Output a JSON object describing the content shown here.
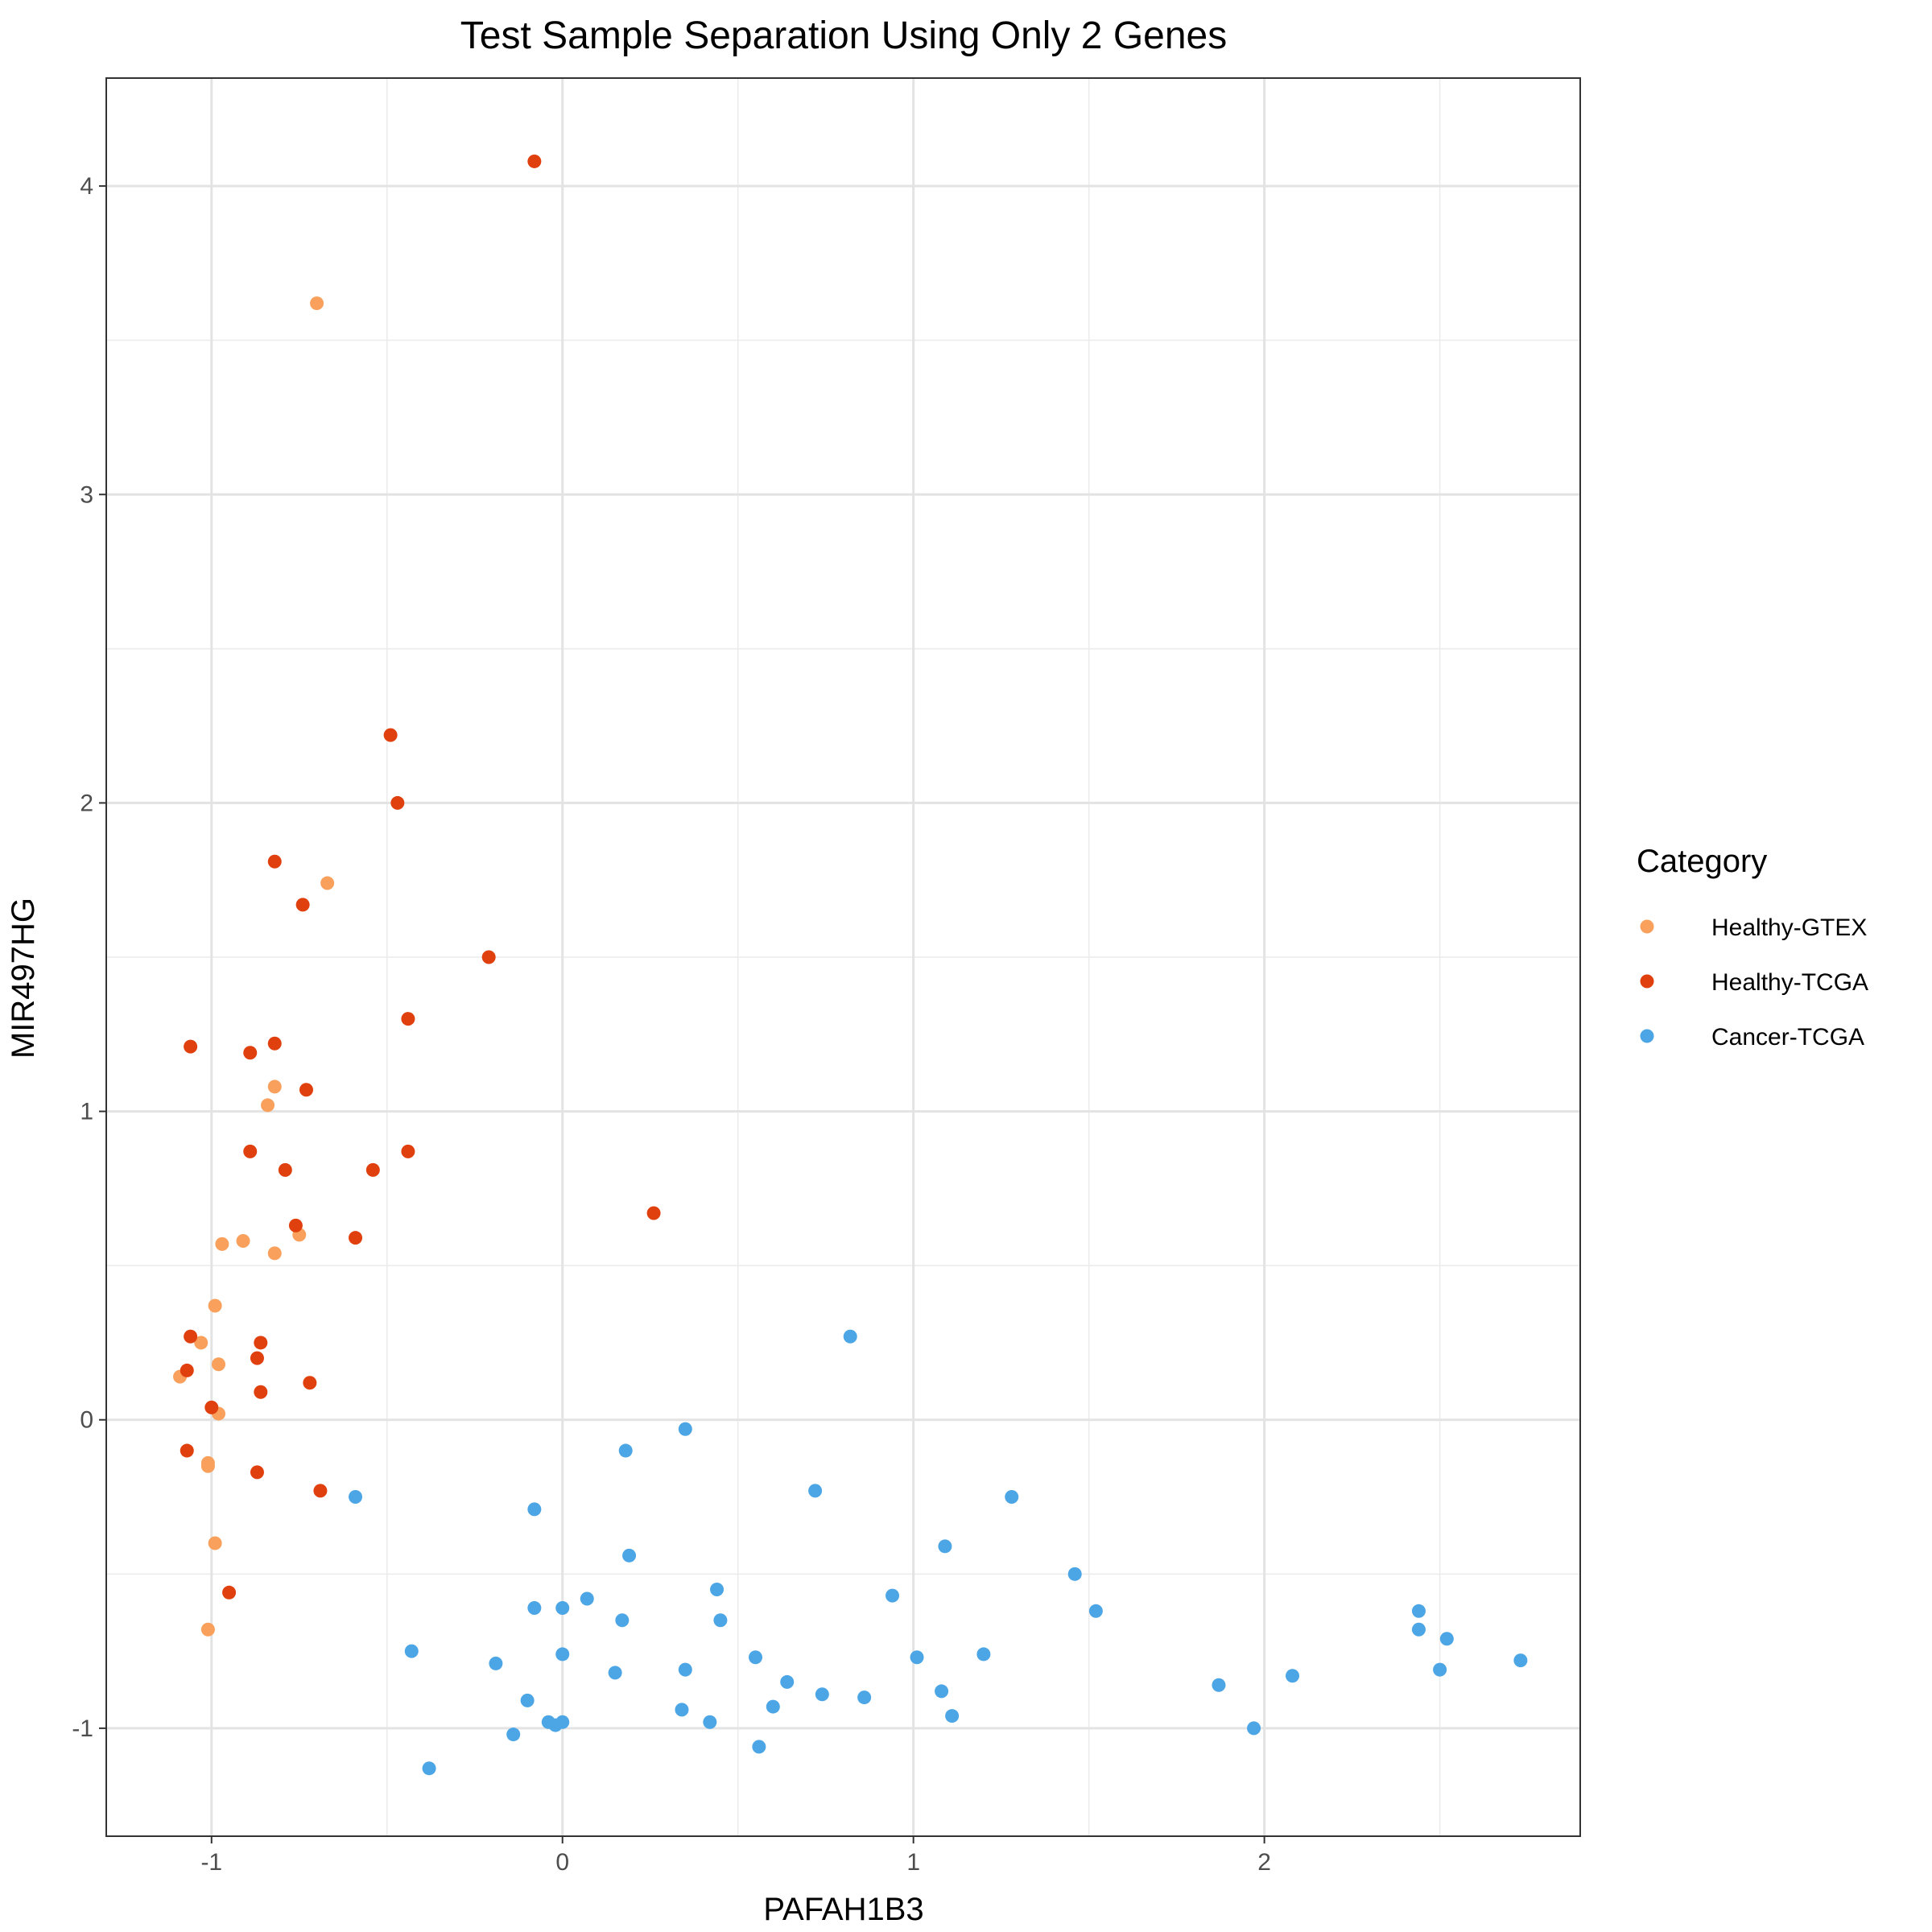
{
  "chart_data": {
    "type": "scatter",
    "title": "Test Sample Separation Using Only 2 Genes",
    "xlabel": "PAFAH1B3",
    "ylabel": "MIR497HG",
    "xlim": [
      -1.3,
      2.9
    ],
    "ylim": [
      -1.35,
      4.35
    ],
    "x_ticks": [
      -1,
      0,
      1,
      2
    ],
    "y_ticks": [
      -1,
      0,
      1,
      2,
      3,
      4
    ],
    "x_tick_labels": [
      "-1",
      "0",
      "1",
      "2"
    ],
    "y_tick_labels": [
      "-1",
      "0",
      "1",
      "2",
      "3",
      "4"
    ],
    "grid": true,
    "legend_title": "Category",
    "legend_position": "right",
    "series": [
      {
        "name": "Healthy-GTEX",
        "color": "#F8A05C",
        "points": [
          [
            -0.7,
            3.62
          ],
          [
            -0.67,
            1.74
          ],
          [
            -0.82,
            1.08
          ],
          [
            -0.84,
            1.02
          ],
          [
            -0.97,
            0.57
          ],
          [
            -0.91,
            0.58
          ],
          [
            -0.82,
            0.54
          ],
          [
            -0.75,
            0.6
          ],
          [
            -0.99,
            0.37
          ],
          [
            -1.03,
            0.25
          ],
          [
            -1.09,
            0.14
          ],
          [
            -0.98,
            0.18
          ],
          [
            -0.98,
            0.02
          ],
          [
            -1.01,
            -0.14
          ],
          [
            -1.01,
            -0.15
          ],
          [
            -0.99,
            -0.4
          ],
          [
            -1.01,
            -0.68
          ]
        ]
      },
      {
        "name": "Healthy-TCGA",
        "color": "#E0400E",
        "points": [
          [
            -0.08,
            4.08
          ],
          [
            -0.49,
            2.22
          ],
          [
            -0.47,
            2.0
          ],
          [
            -0.82,
            1.81
          ],
          [
            -0.74,
            1.67
          ],
          [
            -0.21,
            1.5
          ],
          [
            -0.44,
            1.3
          ],
          [
            -1.06,
            1.21
          ],
          [
            -0.89,
            1.19
          ],
          [
            -0.82,
            1.22
          ],
          [
            -0.73,
            1.07
          ],
          [
            -0.89,
            0.87
          ],
          [
            -0.79,
            0.81
          ],
          [
            -0.54,
            0.81
          ],
          [
            -0.44,
            0.87
          ],
          [
            -0.76,
            0.63
          ],
          [
            -0.59,
            0.59
          ],
          [
            0.26,
            0.67
          ],
          [
            -1.06,
            0.27
          ],
          [
            -0.86,
            0.25
          ],
          [
            -0.87,
            0.2
          ],
          [
            -1.07,
            0.16
          ],
          [
            -0.72,
            0.12
          ],
          [
            -0.86,
            0.09
          ],
          [
            -1.0,
            0.04
          ],
          [
            -1.07,
            -0.1
          ],
          [
            -0.87,
            -0.17
          ],
          [
            -0.69,
            -0.23
          ],
          [
            -0.95,
            -0.56
          ]
        ]
      },
      {
        "name": "Cancer-TCGA",
        "color": "#4CA5E5",
        "points": [
          [
            0.82,
            0.27
          ],
          [
            0.35,
            -0.03
          ],
          [
            0.18,
            -0.1
          ],
          [
            -0.59,
            -0.25
          ],
          [
            0.72,
            -0.23
          ],
          [
            1.28,
            -0.25
          ],
          [
            -0.08,
            -0.29
          ],
          [
            1.09,
            -0.41
          ],
          [
            0.19,
            -0.44
          ],
          [
            1.46,
            -0.5
          ],
          [
            0.44,
            -0.55
          ],
          [
            0.94,
            -0.57
          ],
          [
            0.07,
            -0.58
          ],
          [
            -0.08,
            -0.61
          ],
          [
            0.0,
            -0.61
          ],
          [
            1.52,
            -0.62
          ],
          [
            0.17,
            -0.65
          ],
          [
            0.45,
            -0.65
          ],
          [
            2.44,
            -0.62
          ],
          [
            2.44,
            -0.68
          ],
          [
            2.52,
            -0.71
          ],
          [
            -0.43,
            -0.75
          ],
          [
            0.0,
            -0.76
          ],
          [
            0.55,
            -0.77
          ],
          [
            1.01,
            -0.77
          ],
          [
            1.2,
            -0.76
          ],
          [
            2.73,
            -0.78
          ],
          [
            -0.19,
            -0.79
          ],
          [
            0.15,
            -0.82
          ],
          [
            0.35,
            -0.81
          ],
          [
            2.5,
            -0.81
          ],
          [
            2.08,
            -0.83
          ],
          [
            0.64,
            -0.85
          ],
          [
            0.74,
            -0.89
          ],
          [
            0.86,
            -0.9
          ],
          [
            1.08,
            -0.88
          ],
          [
            1.87,
            -0.86
          ],
          [
            -0.1,
            -0.91
          ],
          [
            0.34,
            -0.94
          ],
          [
            0.6,
            -0.93
          ],
          [
            1.11,
            -0.96
          ],
          [
            -0.04,
            -0.98
          ],
          [
            -0.02,
            -0.99
          ],
          [
            0.0,
            -0.98
          ],
          [
            0.42,
            -0.98
          ],
          [
            1.97,
            -1.0
          ],
          [
            -0.14,
            -1.02
          ],
          [
            0.56,
            -1.06
          ],
          [
            -0.38,
            -1.13
          ]
        ]
      }
    ]
  }
}
